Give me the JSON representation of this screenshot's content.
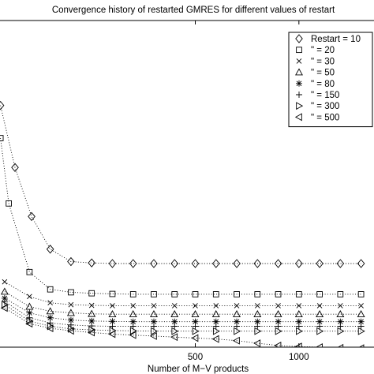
{
  "chart_data": {
    "type": "line",
    "title": "Convergence history of restarted GMRES for different values of restart",
    "xlabel": "Number of M−V products",
    "ylabel": "",
    "xlim": [
      -450,
      1370
    ],
    "ylim": [
      0,
      1
    ],
    "x_ticks": [
      500,
      1000
    ],
    "x_tick_labels": [
      "500",
      "1000"
    ],
    "grid": false,
    "legend_placement": "top-right",
    "line_style": "dotted",
    "series": [
      {
        "name": "Restart =  10",
        "legend_label": "Restart =  10",
        "marker": "diamond",
        "x": [
          -440,
          -370,
          -290,
          -200,
          -100,
          0,
          100,
          200,
          300,
          400,
          500,
          600,
          700,
          800,
          900,
          1000,
          1100,
          1200,
          1300
        ],
        "y": [
          0.74,
          0.55,
          0.4,
          0.3,
          0.262,
          0.258,
          0.256,
          0.256,
          0.256,
          0.256,
          0.256,
          0.256,
          0.256,
          0.256,
          0.256,
          0.256,
          0.256,
          0.256,
          0.256
        ]
      },
      {
        "name": "\"  =  20",
        "legend_label": "\"     =   20",
        "marker": "square",
        "x": [
          -440,
          -400,
          -300,
          -200,
          -100,
          0,
          100,
          200,
          300,
          400,
          500,
          600,
          700,
          800,
          900,
          1000,
          1100,
          1200,
          1300
        ],
        "y": [
          0.64,
          0.44,
          0.23,
          0.177,
          0.168,
          0.165,
          0.163,
          0.162,
          0.162,
          0.162,
          0.162,
          0.162,
          0.162,
          0.162,
          0.162,
          0.162,
          0.162,
          0.162,
          0.162
        ]
      },
      {
        "name": "\"  =  30",
        "legend_label": "\"     =   30",
        "marker": "x",
        "x": [
          -420,
          -300,
          -200,
          -100,
          0,
          100,
          200,
          300,
          400,
          500,
          600,
          700,
          800,
          900,
          1000,
          1100,
          1200,
          1300
        ],
        "y": [
          0.2,
          0.155,
          0.136,
          0.13,
          0.128,
          0.127,
          0.127,
          0.127,
          0.127,
          0.127,
          0.127,
          0.127,
          0.127,
          0.127,
          0.127,
          0.127,
          0.127,
          0.127
        ]
      },
      {
        "name": "\"  =  50",
        "legend_label": "\"     =   50",
        "marker": "triangle-up",
        "x": [
          -420,
          -300,
          -200,
          -100,
          0,
          100,
          200,
          300,
          400,
          500,
          600,
          700,
          800,
          900,
          1000,
          1100,
          1200,
          1300
        ],
        "y": [
          0.17,
          0.124,
          0.11,
          0.105,
          0.102,
          0.101,
          0.101,
          0.101,
          0.101,
          0.101,
          0.101,
          0.101,
          0.101,
          0.101,
          0.101,
          0.101,
          0.101,
          0.101
        ]
      },
      {
        "name": "\"  =  80",
        "legend_label": "\"     =   80",
        "marker": "asterisk",
        "x": [
          -420,
          -300,
          -200,
          -100,
          0,
          100,
          200,
          300,
          400,
          500,
          600,
          700,
          800,
          900,
          1000,
          1100,
          1200,
          1300
        ],
        "y": [
          0.15,
          0.105,
          0.09,
          0.083,
          0.08,
          0.079,
          0.078,
          0.078,
          0.078,
          0.078,
          0.078,
          0.078,
          0.078,
          0.078,
          0.078,
          0.078,
          0.078,
          0.078
        ]
      },
      {
        "name": "\"  = 150",
        "legend_label": "\"     = 150",
        "marker": "plus",
        "x": [
          -420,
          -300,
          -200,
          -100,
          0,
          100,
          200,
          300,
          400,
          500,
          600,
          700,
          800,
          900,
          1000,
          1100,
          1200,
          1300
        ],
        "y": [
          0.14,
          0.09,
          0.074,
          0.068,
          0.065,
          0.064,
          0.064,
          0.064,
          0.064,
          0.064,
          0.064,
          0.064,
          0.064,
          0.064,
          0.064,
          0.064,
          0.064,
          0.064
        ]
      },
      {
        "name": "\"  = 300",
        "legend_label": "\"     = 300",
        "marker": "triangle-right",
        "x": [
          -420,
          -300,
          -200,
          -100,
          0,
          100,
          200,
          300,
          400,
          500,
          600,
          700,
          800,
          900,
          1000,
          1100,
          1200,
          1300
        ],
        "y": [
          0.13,
          0.08,
          0.064,
          0.056,
          0.053,
          0.051,
          0.05,
          0.049,
          0.049,
          0.049,
          0.049,
          0.049,
          0.049,
          0.049,
          0.049,
          0.049,
          0.049,
          0.049
        ]
      },
      {
        "name": "\"  = 500",
        "legend_label": "\"     = 500",
        "marker": "triangle-left",
        "x": [
          -420,
          -300,
          -200,
          -100,
          0,
          100,
          200,
          300,
          400,
          500,
          600,
          700,
          800,
          900,
          1000,
          1100,
          1200,
          1300
        ],
        "y": [
          0.12,
          0.072,
          0.058,
          0.05,
          0.045,
          0.04,
          0.037,
          0.034,
          0.031,
          0.028,
          0.025,
          0.02,
          0.012,
          0.005,
          0.002,
          0.0,
          -0.002,
          -0.003
        ]
      }
    ]
  }
}
